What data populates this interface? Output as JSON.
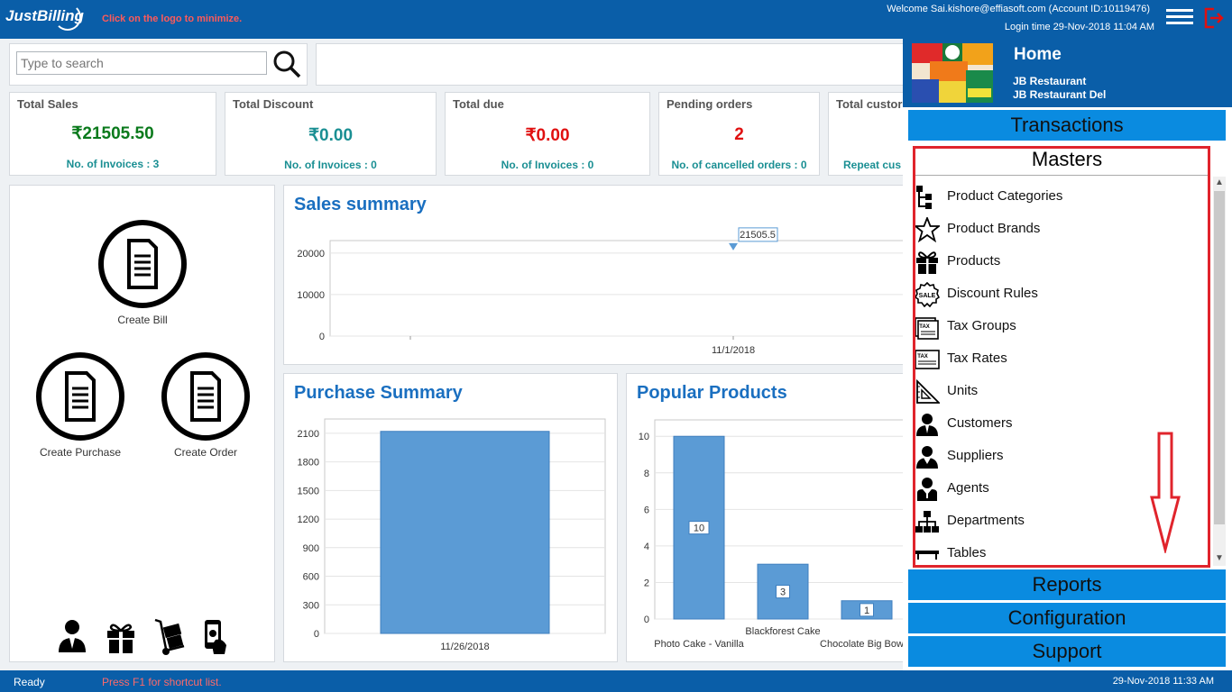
{
  "topbar": {
    "logo_text": "JustBilling",
    "logo_hint": "Click on the logo to minimize.",
    "welcome": "Welcome Sai.kishore@effiasoft.com (Account ID:10119476)",
    "login_time": "Login time  29-Nov-2018 11:04 AM",
    "menu_icon": "hamburger-icon",
    "logout_icon": "logout-icon"
  },
  "search": {
    "placeholder": "Type to search",
    "icon": "search-icon"
  },
  "stats": [
    {
      "title": "Total Sales",
      "value": "₹21505.50",
      "sub": "No. of Invoices : 3",
      "color": "#0a7a1c"
    },
    {
      "title": "Total Discount",
      "value": "₹0.00",
      "sub": "No. of Invoices : 0",
      "color": "#1a8f93"
    },
    {
      "title": "Total due",
      "value": "₹0.00",
      "sub": "No. of Invoices : 0",
      "color": "#e01010"
    },
    {
      "title": "Pending orders",
      "value": "2",
      "sub": "No. of cancelled orders : 0",
      "color": "#e01010"
    },
    {
      "title": "Total custor",
      "value": "",
      "sub": "Repeat cus",
      "color": "#1a8f93"
    }
  ],
  "actions": {
    "create_bill": "Create Bill",
    "create_purchase": "Create Purchase",
    "create_order": "Create Order",
    "bottom_icons": [
      "customer-icon",
      "gift-icon",
      "delivery-icon",
      "payment-icon"
    ]
  },
  "chart_data": [
    {
      "type": "line",
      "title": "Sales summary",
      "x": [
        "11/1/2018"
      ],
      "series": [
        {
          "values": [
            21505.5
          ]
        }
      ],
      "point_label": "21505.5",
      "yticks": [
        0,
        10000,
        20000
      ],
      "ylim": [
        0,
        23000
      ],
      "grid": true
    },
    {
      "type": "bar",
      "title": "Purchase Summary",
      "categories": [
        "11/26/2018"
      ],
      "values": [
        2120
      ],
      "yticks": [
        0,
        300,
        600,
        900,
        1200,
        1500,
        1800,
        2100
      ],
      "ylim": [
        0,
        2250
      ],
      "grid": true
    },
    {
      "type": "bar",
      "title": "Popular Products",
      "categories": [
        "Photo Cake - Vanilla",
        "Blackforest Cake",
        "Chocolate Big Bow C"
      ],
      "values": [
        10,
        3,
        1
      ],
      "yticks": [
        0,
        2,
        4,
        6,
        8,
        10
      ],
      "ylim": [
        0,
        10.9
      ],
      "grid": true
    }
  ],
  "menu": {
    "home": "Home",
    "restaurant_1": "JB Restaurant",
    "restaurant_2": "JB Restaurant Del",
    "transactions": "Transactions",
    "masters": "Masters",
    "reports": "Reports",
    "configuration": "Configuration",
    "support": "Support",
    "master_items": [
      {
        "label": "Product Categories",
        "icon": "hierarchy-icon"
      },
      {
        "label": "Product Brands",
        "icon": "star-icon"
      },
      {
        "label": "Products",
        "icon": "gift-icon"
      },
      {
        "label": "Discount Rules",
        "icon": "sale-badge-icon"
      },
      {
        "label": "Tax Groups",
        "icon": "tax-stack-icon"
      },
      {
        "label": "Tax Rates",
        "icon": "tax-icon"
      },
      {
        "label": "Units",
        "icon": "ruler-triangle-icon"
      },
      {
        "label": "Customers",
        "icon": "customer-icon"
      },
      {
        "label": "Suppliers",
        "icon": "supplier-icon"
      },
      {
        "label": "Agents",
        "icon": "agent-icon"
      },
      {
        "label": "Departments",
        "icon": "org-chart-icon"
      },
      {
        "label": "Tables",
        "icon": "table-icon"
      }
    ]
  },
  "statusbar": {
    "ready": "Ready",
    "hint": "Press F1 for shortcut list.",
    "datetime": "29-Nov-2018 11:33 AM"
  },
  "colors": {
    "brand": "#0a5ea8",
    "menu_section": "#0a8be0",
    "chart_bar": "#5b9bd5",
    "chart_title": "#1a6fc0",
    "highlight": "#e0242c"
  }
}
